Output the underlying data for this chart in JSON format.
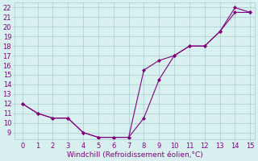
{
  "line1_x": [
    0,
    1,
    2,
    3,
    4,
    5,
    6,
    7,
    8,
    9,
    10,
    11,
    12,
    13,
    14,
    15
  ],
  "line1_y": [
    12,
    11,
    10.5,
    10.5,
    9.0,
    8.5,
    8.5,
    8.5,
    10.5,
    14.5,
    17.0,
    18.0,
    18.0,
    19.5,
    22.0,
    21.5
  ],
  "line2_x": [
    0,
    1,
    2,
    3,
    4,
    5,
    6,
    7,
    8,
    9,
    10,
    11,
    12,
    13,
    14,
    15
  ],
  "line2_y": [
    12,
    11,
    10.5,
    10.5,
    9.0,
    8.5,
    8.5,
    8.5,
    15.5,
    16.5,
    17.0,
    18.0,
    18.0,
    19.5,
    21.5,
    21.5
  ],
  "line_color": "#800080",
  "bg_color": "#d8f0f0",
  "grid_color": "#aacccc",
  "xlabel": "Windchill (Refroidissement éolien,°C)",
  "xlim": [
    -0.5,
    15.3
  ],
  "ylim": [
    8.3,
    22.5
  ],
  "xticks": [
    0,
    1,
    2,
    3,
    4,
    5,
    6,
    7,
    8,
    9,
    10,
    11,
    12,
    13,
    14,
    15
  ],
  "yticks": [
    9,
    10,
    11,
    12,
    13,
    14,
    15,
    16,
    17,
    18,
    19,
    20,
    21,
    22
  ],
  "label_color": "#800080",
  "label_fontsize": 6.5,
  "tick_fontsize": 6.0
}
